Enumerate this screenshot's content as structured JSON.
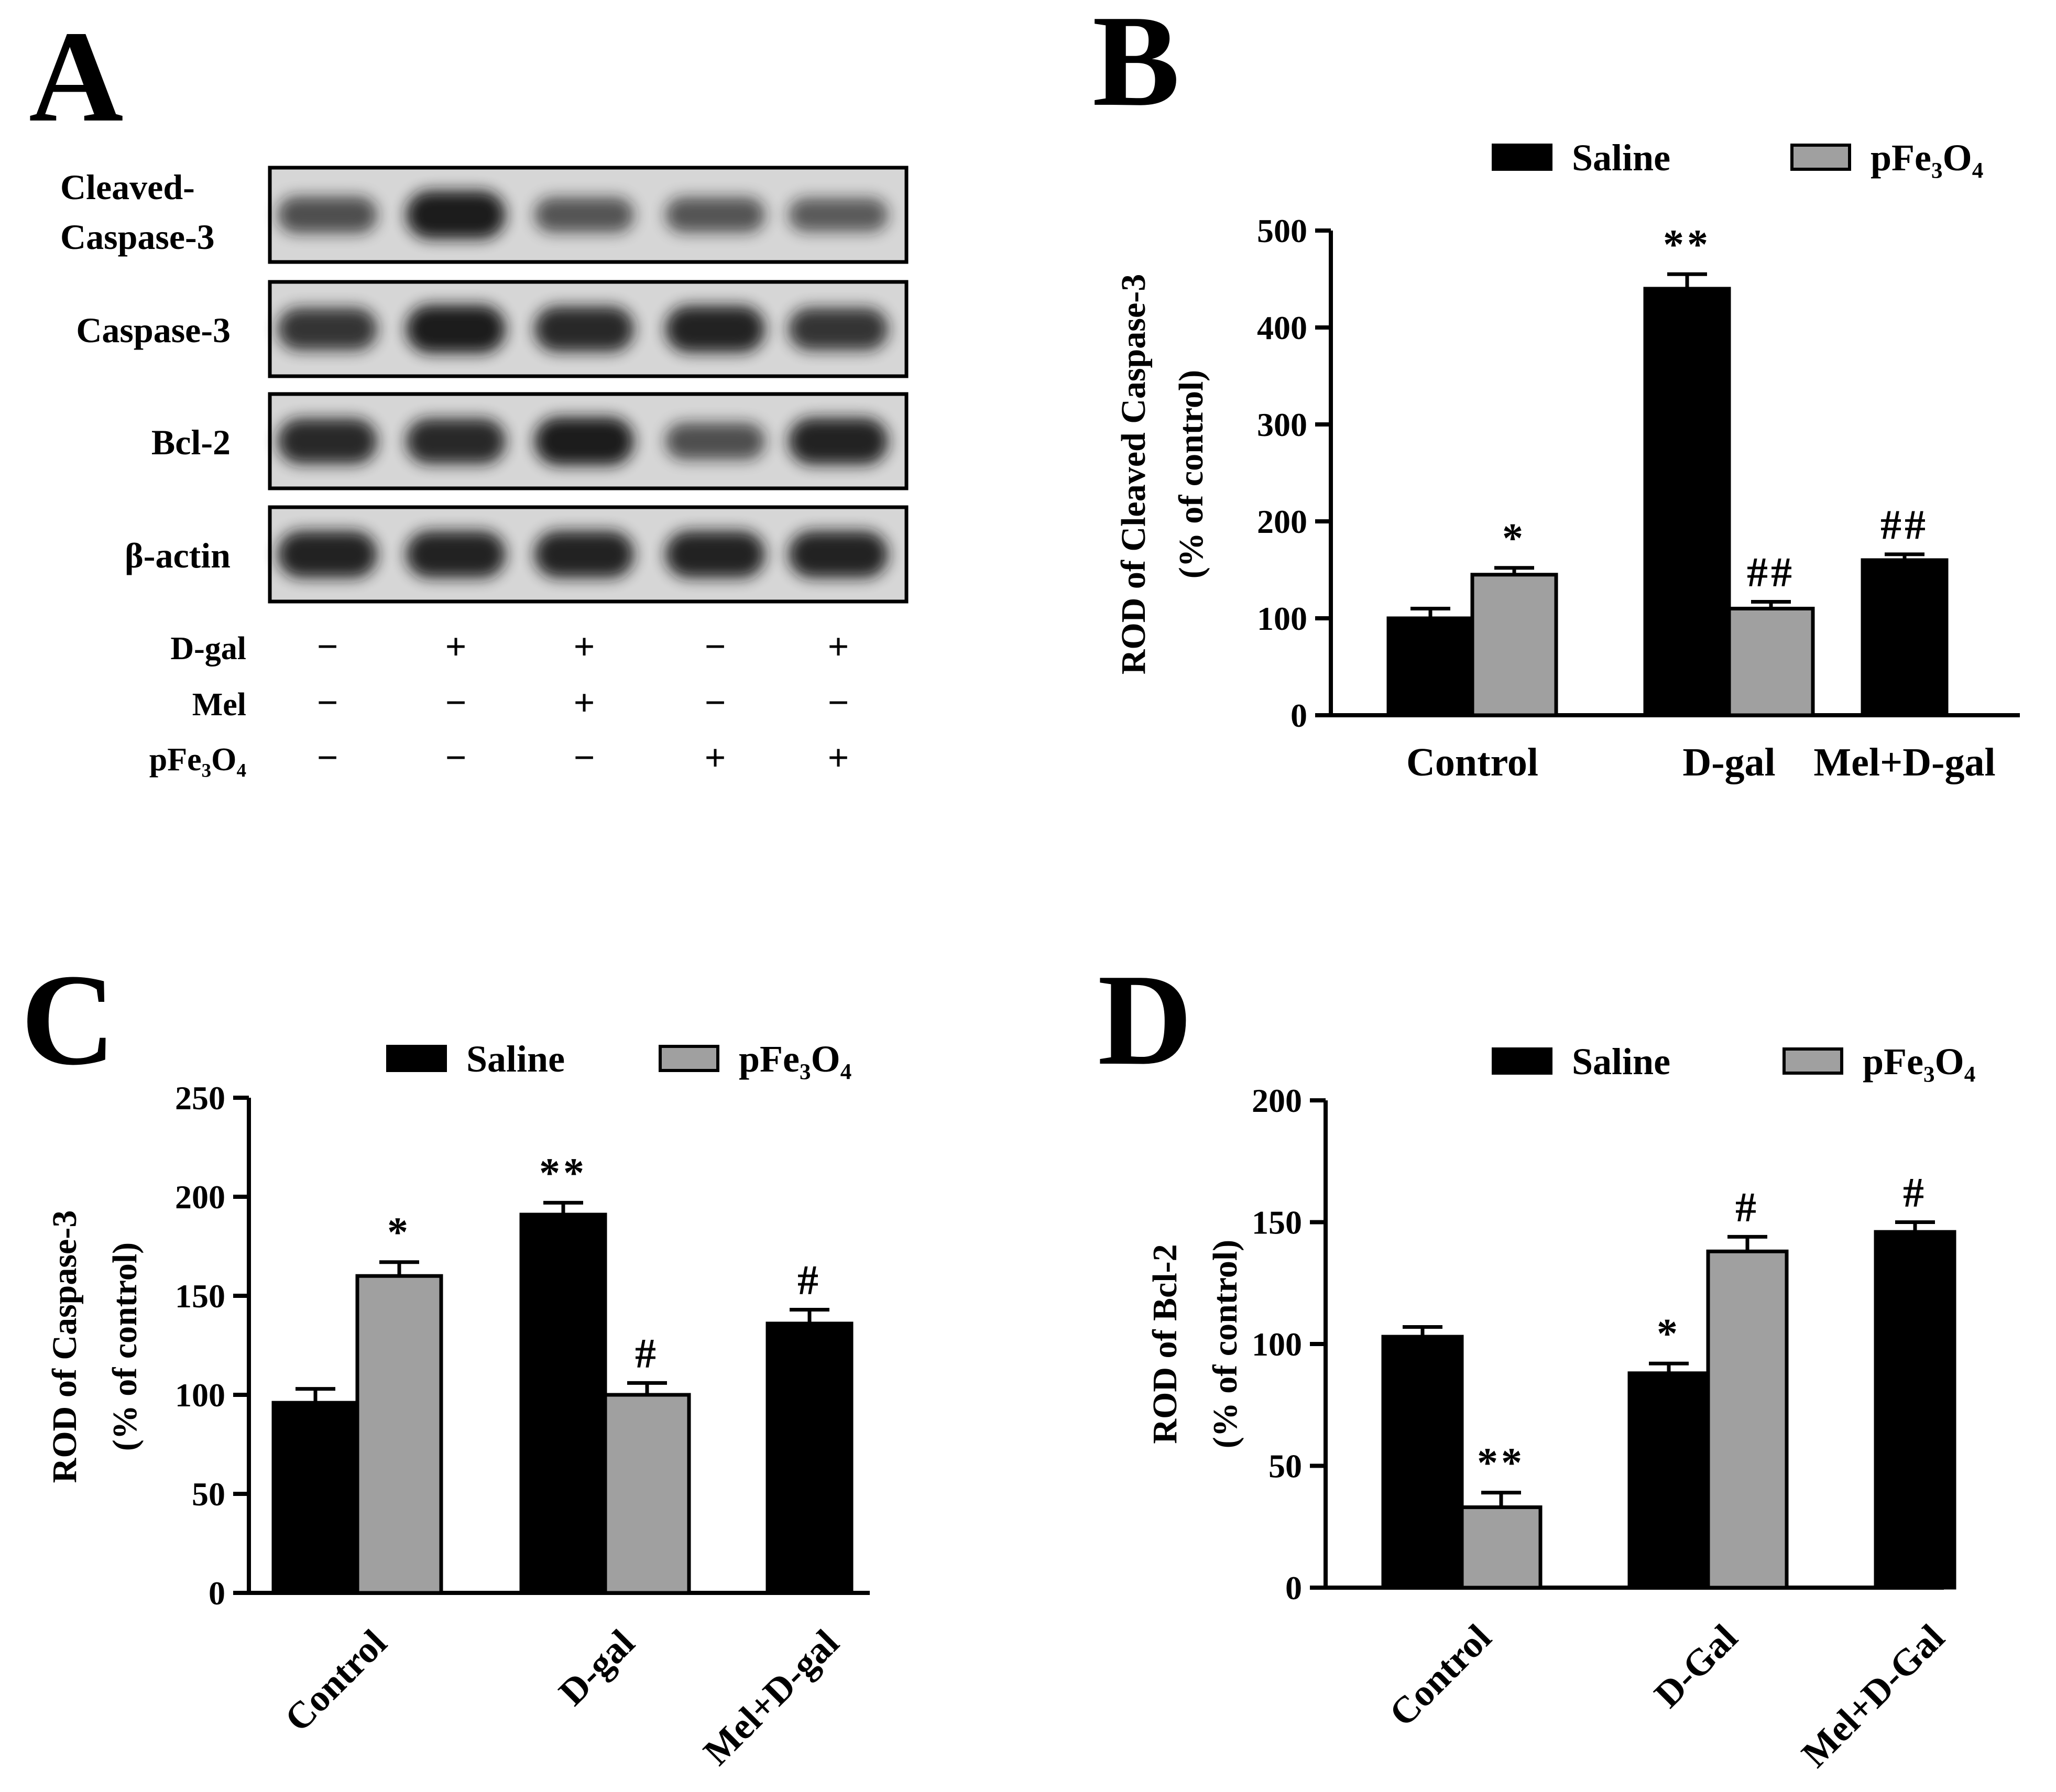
{
  "colors": {
    "saline": "#000000",
    "pfe": "#a0a0a0",
    "axis": "#000000",
    "band": "#151515",
    "blot_bg": "#d6d6d6"
  },
  "panels": {
    "A": "A",
    "B": "B",
    "C": "C",
    "D": "D"
  },
  "western_blot": {
    "rows": [
      {
        "label_lines": [
          "Cleaved-",
          "Caspase-3"
        ],
        "intensities": [
          0.55,
          0.95,
          0.5,
          0.5,
          0.45
        ]
      },
      {
        "label_lines": [
          "Caspase-3"
        ],
        "intensities": [
          0.75,
          0.95,
          0.85,
          0.9,
          0.75
        ]
      },
      {
        "label_lines": [
          "Bcl-2"
        ],
        "intensities": [
          0.85,
          0.85,
          0.95,
          0.55,
          0.9
        ]
      },
      {
        "label_lines": [
          "β-actin"
        ],
        "intensities": [
          0.9,
          0.9,
          0.9,
          0.9,
          0.9
        ]
      }
    ],
    "treatments": [
      {
        "label": "D-gal",
        "signs": [
          "−",
          "+",
          "+",
          "−",
          "+"
        ]
      },
      {
        "label": "Mel",
        "signs": [
          "−",
          "−",
          "+",
          "−",
          "−"
        ]
      },
      {
        "label": "pFe₃O₄",
        "signs": [
          "−",
          "−",
          "−",
          "+",
          "+"
        ]
      }
    ]
  },
  "chart_data": [
    {
      "panel": "B",
      "type": "bar",
      "title": "",
      "ylabel": [
        "ROD of Cleaved Caspase-3",
        "(% of control)"
      ],
      "xlabel": "",
      "categories": [
        "Control",
        "D-gal",
        "Mel+D-gal"
      ],
      "ylim": [
        0,
        500
      ],
      "yticks": [
        0,
        100,
        200,
        300,
        400,
        500
      ],
      "legend": [
        "Saline",
        "pFe₃O₄"
      ],
      "series": [
        {
          "name": "Saline",
          "values": [
            100,
            440,
            160
          ],
          "errors": [
            10,
            15,
            6
          ],
          "annotations": [
            "",
            "**",
            "##"
          ]
        },
        {
          "name": "pFe₃O₄",
          "values": [
            145,
            110,
            null
          ],
          "errors": [
            7,
            7,
            null
          ],
          "annotations": [
            "*",
            "##",
            ""
          ]
        }
      ]
    },
    {
      "panel": "C",
      "type": "bar",
      "title": "",
      "ylabel": [
        "ROD of Caspase-3",
        "(% of control)"
      ],
      "xlabel": "",
      "categories": [
        "Control",
        "D-gal",
        "Mel+D-gal"
      ],
      "ylim": [
        0,
        250
      ],
      "yticks": [
        0,
        50,
        100,
        150,
        200,
        250
      ],
      "legend": [
        "Saline",
        "pFe₃O₄"
      ],
      "series": [
        {
          "name": "Saline",
          "values": [
            96,
            191,
            136
          ],
          "errors": [
            7,
            6,
            7
          ],
          "annotations": [
            "",
            "**",
            "#"
          ]
        },
        {
          "name": "pFe₃O₄",
          "values": [
            160,
            100,
            null
          ],
          "errors": [
            7,
            6,
            null
          ],
          "annotations": [
            "*",
            "#",
            ""
          ]
        }
      ]
    },
    {
      "panel": "D",
      "type": "bar",
      "title": "",
      "ylabel": [
        "ROD of Bcl-2",
        "(% of control)"
      ],
      "xlabel": "",
      "categories": [
        "Control",
        "D-Gal",
        "Mel+D-Gal"
      ],
      "ylim": [
        0,
        200
      ],
      "yticks": [
        0,
        50,
        100,
        150,
        200
      ],
      "legend": [
        "Saline",
        "pFe₃O₄"
      ],
      "series": [
        {
          "name": "Saline",
          "values": [
            103,
            88,
            146
          ],
          "errors": [
            4,
            4,
            4
          ],
          "annotations": [
            "",
            "*",
            "#"
          ]
        },
        {
          "name": "pFe₃O₄",
          "values": [
            33,
            138,
            null
          ],
          "errors": [
            6,
            6,
            null
          ],
          "annotations": [
            "**",
            "#",
            ""
          ]
        }
      ]
    }
  ]
}
